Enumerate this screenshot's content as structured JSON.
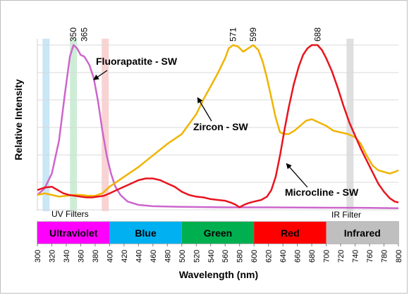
{
  "chart_data": {
    "type": "line",
    "xlabel": "Wavelength (nm)",
    "ylabel": "Relative Intensity",
    "xlim": [
      300,
      800
    ],
    "ylim": [
      0,
      1
    ],
    "x_ticks": [
      300,
      320,
      340,
      360,
      380,
      400,
      420,
      440,
      460,
      480,
      500,
      520,
      540,
      560,
      580,
      600,
      620,
      640,
      660,
      680,
      700,
      720,
      740,
      760,
      780,
      800
    ],
    "y_ticks": [
      0,
      0.167,
      0.333,
      0.5,
      0.667,
      0.833,
      1
    ],
    "y_tick_labels_shown": false,
    "grid": "horizontal",
    "series": [
      {
        "name": "Fluorapatite - SW",
        "color": "#cc66cc",
        "points": [
          [
            300,
            0.09
          ],
          [
            310,
            0.13
          ],
          [
            320,
            0.22
          ],
          [
            330,
            0.42
          ],
          [
            338,
            0.7
          ],
          [
            345,
            0.93
          ],
          [
            350,
            1.0
          ],
          [
            355,
            0.98
          ],
          [
            360,
            0.94
          ],
          [
            365,
            0.93
          ],
          [
            372,
            0.88
          ],
          [
            378,
            0.8
          ],
          [
            384,
            0.66
          ],
          [
            390,
            0.48
          ],
          [
            396,
            0.33
          ],
          [
            402,
            0.22
          ],
          [
            408,
            0.14
          ],
          [
            415,
            0.09
          ],
          [
            425,
            0.05
          ],
          [
            440,
            0.03
          ],
          [
            460,
            0.022
          ],
          [
            500,
            0.018
          ],
          [
            560,
            0.015
          ],
          [
            620,
            0.015
          ],
          [
            700,
            0.013
          ],
          [
            760,
            0.012
          ],
          [
            800,
            0.01
          ]
        ]
      },
      {
        "name": "Zircon - SW",
        "color": "#f0b400",
        "points": [
          [
            300,
            0.09
          ],
          [
            310,
            0.1
          ],
          [
            320,
            0.09
          ],
          [
            330,
            0.08
          ],
          [
            340,
            0.085
          ],
          [
            350,
            0.09
          ],
          [
            360,
            0.09
          ],
          [
            370,
            0.085
          ],
          [
            380,
            0.085
          ],
          [
            390,
            0.1
          ],
          [
            400,
            0.14
          ],
          [
            420,
            0.2
          ],
          [
            440,
            0.26
          ],
          [
            460,
            0.33
          ],
          [
            480,
            0.4
          ],
          [
            500,
            0.46
          ],
          [
            510,
            0.52
          ],
          [
            520,
            0.58
          ],
          [
            530,
            0.67
          ],
          [
            540,
            0.75
          ],
          [
            550,
            0.83
          ],
          [
            560,
            0.92
          ],
          [
            565,
            0.98
          ],
          [
            571,
            1.0
          ],
          [
            578,
            0.99
          ],
          [
            585,
            0.96
          ],
          [
            592,
            0.98
          ],
          [
            599,
            1.0
          ],
          [
            606,
            0.97
          ],
          [
            612,
            0.9
          ],
          [
            618,
            0.8
          ],
          [
            624,
            0.68
          ],
          [
            630,
            0.56
          ],
          [
            636,
            0.47
          ],
          [
            642,
            0.46
          ],
          [
            648,
            0.46
          ],
          [
            656,
            0.48
          ],
          [
            664,
            0.51
          ],
          [
            672,
            0.54
          ],
          [
            680,
            0.55
          ],
          [
            690,
            0.53
          ],
          [
            700,
            0.51
          ],
          [
            710,
            0.48
          ],
          [
            720,
            0.47
          ],
          [
            730,
            0.46
          ],
          [
            740,
            0.44
          ],
          [
            748,
            0.4
          ],
          [
            756,
            0.33
          ],
          [
            764,
            0.27
          ],
          [
            772,
            0.24
          ],
          [
            780,
            0.23
          ],
          [
            788,
            0.22
          ],
          [
            795,
            0.23
          ],
          [
            800,
            0.24
          ]
        ]
      },
      {
        "name": "Microcline - SW",
        "color": "#e8141e",
        "points": [
          [
            300,
            0.12
          ],
          [
            310,
            0.135
          ],
          [
            320,
            0.14
          ],
          [
            328,
            0.12
          ],
          [
            336,
            0.1
          ],
          [
            344,
            0.09
          ],
          [
            352,
            0.085
          ],
          [
            360,
            0.08
          ],
          [
            368,
            0.075
          ],
          [
            376,
            0.075
          ],
          [
            384,
            0.08
          ],
          [
            392,
            0.085
          ],
          [
            400,
            0.1
          ],
          [
            410,
            0.12
          ],
          [
            420,
            0.14
          ],
          [
            430,
            0.16
          ],
          [
            440,
            0.18
          ],
          [
            450,
            0.19
          ],
          [
            460,
            0.19
          ],
          [
            470,
            0.18
          ],
          [
            480,
            0.16
          ],
          [
            490,
            0.14
          ],
          [
            500,
            0.11
          ],
          [
            510,
            0.09
          ],
          [
            520,
            0.08
          ],
          [
            530,
            0.075
          ],
          [
            540,
            0.065
          ],
          [
            550,
            0.06
          ],
          [
            560,
            0.055
          ],
          [
            570,
            0.04
          ],
          [
            575,
            0.03
          ],
          [
            580,
            0.015
          ],
          [
            586,
            0.03
          ],
          [
            592,
            0.04
          ],
          [
            600,
            0.05
          ],
          [
            610,
            0.06
          ],
          [
            618,
            0.08
          ],
          [
            624,
            0.12
          ],
          [
            630,
            0.2
          ],
          [
            636,
            0.33
          ],
          [
            642,
            0.48
          ],
          [
            648,
            0.62
          ],
          [
            655,
            0.76
          ],
          [
            662,
            0.87
          ],
          [
            668,
            0.94
          ],
          [
            674,
            0.98
          ],
          [
            680,
            1.0
          ],
          [
            688,
            1.0
          ],
          [
            694,
            0.97
          ],
          [
            700,
            0.92
          ],
          [
            708,
            0.84
          ],
          [
            716,
            0.74
          ],
          [
            724,
            0.63
          ],
          [
            732,
            0.53
          ],
          [
            740,
            0.45
          ],
          [
            748,
            0.37
          ],
          [
            756,
            0.3
          ],
          [
            764,
            0.23
          ],
          [
            772,
            0.16
          ],
          [
            780,
            0.11
          ],
          [
            788,
            0.07
          ],
          [
            795,
            0.05
          ],
          [
            800,
            0.045
          ]
        ]
      }
    ],
    "peak_labels": [
      {
        "text": "350",
        "x": 350
      },
      {
        "text": "365",
        "x": 365
      },
      {
        "text": "571",
        "x": 571
      },
      {
        "text": "599",
        "x": 599
      },
      {
        "text": "688",
        "x": 688
      }
    ],
    "annotations": [
      {
        "text": "Fluorapatite - SW",
        "target_x": 378,
        "target_y": 0.79
      },
      {
        "text": "Zircon - SW",
        "target_x": 522,
        "target_y": 0.68
      },
      {
        "text": "Microcline - SW",
        "target_x": 645,
        "target_y": 0.28
      }
    ],
    "filter_labels": {
      "uv": "UV Filters",
      "ir": "IR Filter"
    },
    "filters": [
      {
        "x": 312,
        "color": "#bfe3f5"
      },
      {
        "x": 350,
        "color": "#c6ead0"
      },
      {
        "x": 394,
        "color": "#f8cbcb"
      },
      {
        "x": 733,
        "color": "#d9d9d9"
      }
    ],
    "bands": [
      {
        "label": "Ultraviolet",
        "from": 300,
        "to": 400,
        "color": "#ff00ff",
        "text_color": "#000000"
      },
      {
        "label": "Blue",
        "from": 400,
        "to": 500,
        "color": "#00b0f0",
        "text_color": "#000000"
      },
      {
        "label": "Green",
        "from": 500,
        "to": 600,
        "color": "#00b050",
        "text_color": "#000000"
      },
      {
        "label": "Red",
        "from": 600,
        "to": 700,
        "color": "#ff0000",
        "text_color": "#000000"
      },
      {
        "label": "Infrared",
        "from": 700,
        "to": 800,
        "color": "#bfbfbf",
        "text_color": "#000000"
      }
    ]
  }
}
